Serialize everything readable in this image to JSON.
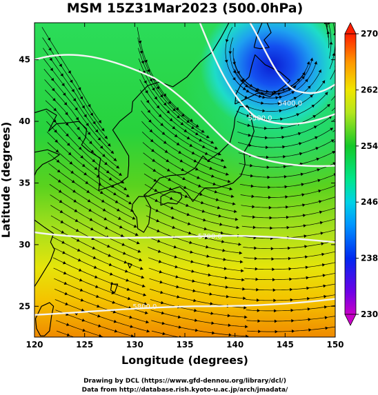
{
  "title": "MSM 15Z31Mar2023 (500.0hPa)",
  "x_axis_title": "Longitude (degrees)",
  "y_axis_title": "Latitude  (degrees)",
  "x_ticks": [
    {
      "value": 120,
      "label": "120"
    },
    {
      "value": 125,
      "label": "125"
    },
    {
      "value": 130,
      "label": "130"
    },
    {
      "value": 135,
      "label": "135"
    },
    {
      "value": 140,
      "label": "140"
    },
    {
      "value": 145,
      "label": "145"
    },
    {
      "value": 150,
      "label": "150"
    }
  ],
  "y_ticks": [
    {
      "value": 25,
      "label": "25"
    },
    {
      "value": 30,
      "label": "30"
    },
    {
      "value": 35,
      "label": "35"
    },
    {
      "value": 40,
      "label": "40"
    },
    {
      "value": 45,
      "label": "45"
    }
  ],
  "lon_range": [
    120,
    150
  ],
  "lat_range": [
    22.5,
    48
  ],
  "colorbar": {
    "min": 230,
    "max": 270,
    "labels": [
      {
        "value": 270,
        "label": "270"
      },
      {
        "value": 262,
        "label": "262"
      },
      {
        "value": 254,
        "label": "254"
      },
      {
        "value": 246,
        "label": "246"
      },
      {
        "value": 238,
        "label": "238"
      },
      {
        "value": 230,
        "label": "230"
      }
    ]
  },
  "contour_labels": [
    {
      "text": "5400.0",
      "lon": 145.5,
      "lat": 41.3
    },
    {
      "text": "5500.0",
      "lon": 142.5,
      "lat": 40.1
    },
    {
      "text": "5700.0",
      "lon": 137.5,
      "lat": 30.5
    },
    {
      "text": "5800.0",
      "lon": 131.0,
      "lat": 24.8
    }
  ],
  "credits": [
    "Drawing by DCL (https://www.gfd-dennou.org/library/dcl/)",
    "Data from http://database.rish.kyoto-u.ac.jp/arch/jmadata/"
  ],
  "colors": {
    "frame": "#000000",
    "contour": "#f4f4f4",
    "coast": "#000000"
  }
}
